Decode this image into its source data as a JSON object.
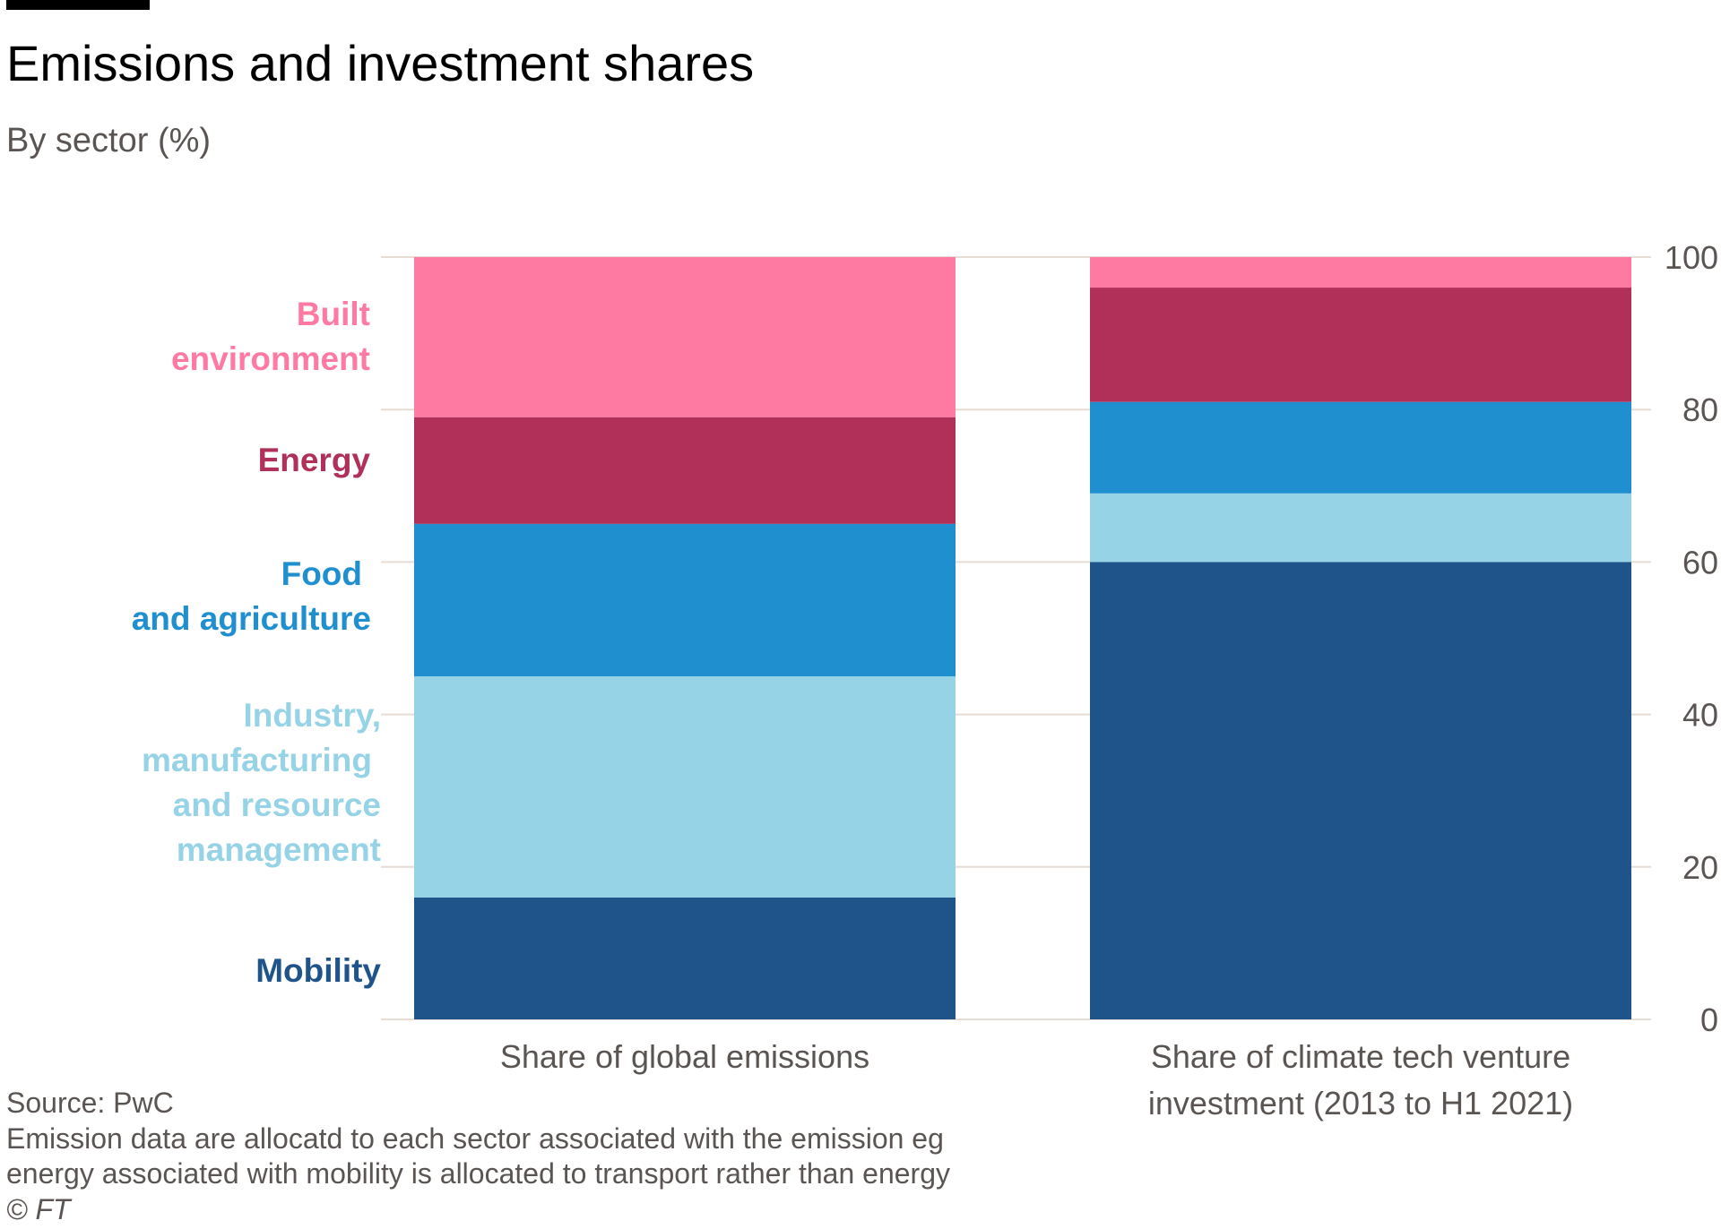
{
  "header": {
    "title": "Emissions and investment shares",
    "subtitle": "By sector (%)"
  },
  "footer": {
    "source": "Source: PwC",
    "note_line1": "Emission data are allocatd to each sector associated with the emission eg",
    "note_line2": "energy associated with mobility is allocated to transport rather than energy",
    "copyright": "© FT"
  },
  "colors": {
    "built_environment": "#ff7aa3",
    "energy": "#b03059",
    "food_and_agriculture": "#1f8fcf",
    "industry": "#96d3e6",
    "mobility": "#1f548a",
    "gridline": "#e6dcd4",
    "axis_text": "#5a5552"
  },
  "legend": {
    "built_environment_1": "Built",
    "built_environment_2": "environment",
    "energy_1": "Energy",
    "food_1": "Food",
    "food_2": "and agriculture",
    "industry_1": "Industry,",
    "industry_2": "manufacturing",
    "industry_3": "and resource",
    "industry_4": "management",
    "mobility_1": "Mobility"
  },
  "chart_data": {
    "type": "bar",
    "stacked": true,
    "categories": [
      "Share of global emissions",
      "Share of climate tech venture investment (2013 to H1 2021)"
    ],
    "category_lines": [
      [
        "Share of global emissions"
      ],
      [
        "Share of climate tech venture",
        "investment (2013 to H1 2021)"
      ]
    ],
    "series": [
      {
        "name": "Mobility",
        "key": "mobility",
        "values": [
          16,
          60
        ]
      },
      {
        "name": "Industry, manufacturing and resource management",
        "key": "industry",
        "values": [
          29,
          9
        ]
      },
      {
        "name": "Food and agriculture",
        "key": "food_and_agriculture",
        "values": [
          20,
          12
        ]
      },
      {
        "name": "Energy",
        "key": "energy",
        "values": [
          14,
          15
        ]
      },
      {
        "name": "Built environment",
        "key": "built_environment",
        "values": [
          21,
          4
        ]
      }
    ],
    "ylim": [
      0,
      100
    ],
    "yticks": [
      0,
      20,
      40,
      60,
      80,
      100
    ],
    "ytick_labels": [
      "0",
      "20",
      "40",
      "60",
      "80",
      "100"
    ],
    "y_axis_side": "right",
    "grid": true,
    "legend_placement": "left, inline labels"
  }
}
